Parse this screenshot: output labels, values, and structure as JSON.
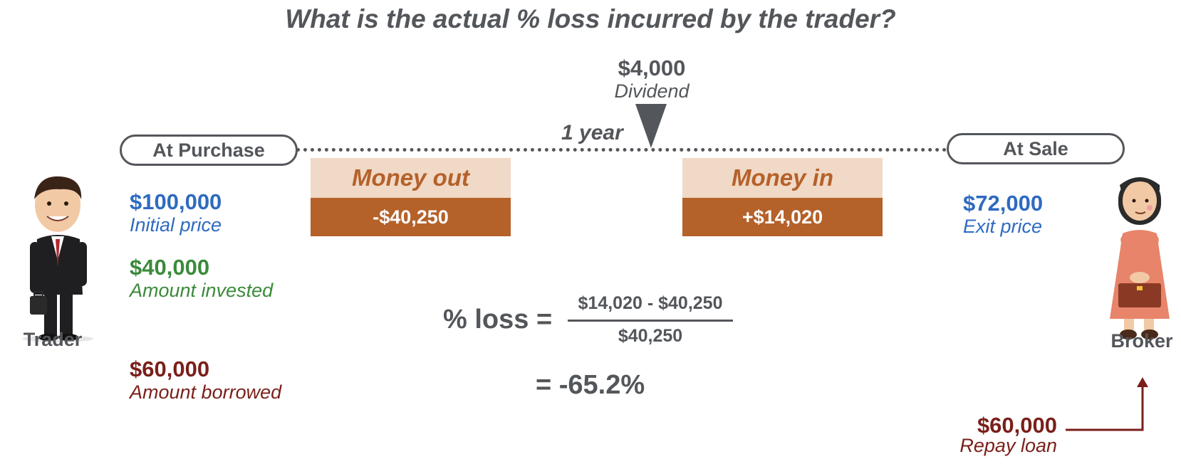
{
  "title": "What is the actual % loss incurred by the trader?",
  "timeline": {
    "start_label": "At Purchase",
    "end_label": "At Sale",
    "period_label": "1 year"
  },
  "dividend": {
    "amount": "$4,000",
    "label": "Dividend"
  },
  "money_out": {
    "label": "Money out",
    "value": "-$40,250"
  },
  "money_in": {
    "label": "Money in",
    "value": "+$14,020"
  },
  "purchase": {
    "initial_price": {
      "amount": "$100,000",
      "label": "Initial price"
    },
    "invested": {
      "amount": "$40,000",
      "label": "Amount invested"
    },
    "borrowed": {
      "amount": "$60,000",
      "label": "Amount borrowed"
    }
  },
  "sale": {
    "exit_price": {
      "amount": "$72,000",
      "label": "Exit price"
    },
    "repay": {
      "amount": "$60,000",
      "label": "Repay loan"
    }
  },
  "formula": {
    "lhs": "% loss =",
    "numerator": "$14,020 - $40,250",
    "denominator": "$40,250",
    "result": "= -65.2%"
  },
  "trader_label": "Trader",
  "broker_label": "Broker",
  "colors": {
    "gray": "#53565a",
    "blue": "#2e6bc0",
    "green": "#3b8a3a",
    "maroon": "#7a1f1a",
    "orange": "#b5612a",
    "peach": "#f0d9c7"
  }
}
